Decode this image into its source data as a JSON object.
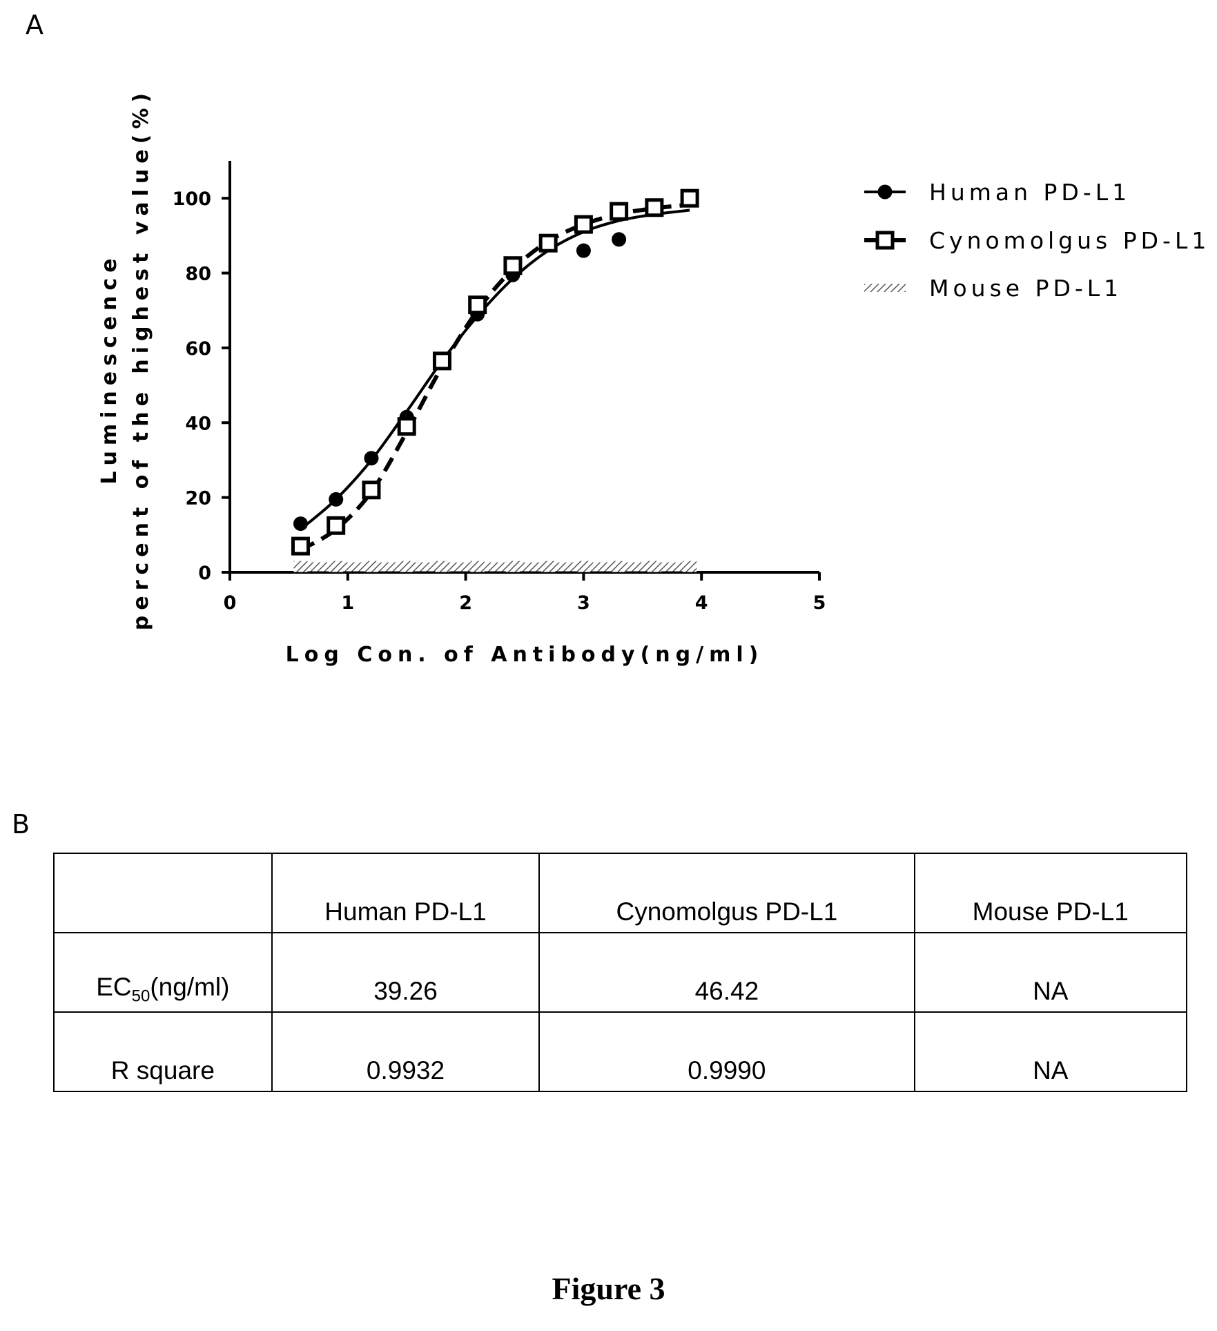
{
  "panel_a_label": "A",
  "panel_b_label": "B",
  "figure_caption": "Figure 3",
  "chart_data": {
    "type": "scatter",
    "xlabel": "Log Con. of Antibody(ng/ml)",
    "ylabel_line1": "Luminescence",
    "ylabel_line2": "percent of the highest value(%)",
    "xlim": [
      0,
      5
    ],
    "ylim": [
      0,
      110
    ],
    "xticks": [
      0,
      1,
      2,
      3,
      4,
      5
    ],
    "yticks": [
      0,
      20,
      40,
      60,
      80,
      100
    ],
    "grid": false,
    "legend_position": "right",
    "series": [
      {
        "name": "Human PD-L1",
        "marker": "filled-circle",
        "line_style": "solid",
        "color": "#000000",
        "x": [
          0.6,
          0.9,
          1.2,
          1.5,
          1.8,
          2.1,
          2.4,
          2.7,
          3.0,
          3.3,
          3.6,
          3.9
        ],
        "y": [
          13,
          19.5,
          30.5,
          41.5,
          56.5,
          69,
          79.5,
          88,
          86,
          89,
          97.5,
          100
        ],
        "fit_x": [
          0.6,
          0.9,
          1.2,
          1.5,
          1.8,
          2.1,
          2.4,
          2.7,
          3.0,
          3.3,
          3.6,
          3.9
        ],
        "fit_y": [
          11.5,
          19.5,
          30,
          43,
          56.5,
          68.5,
          78.5,
          86,
          91,
          94,
          95.7,
          96.8
        ]
      },
      {
        "name": "Cynomolgus PD-L1",
        "marker": "open-square",
        "line_style": "dashed",
        "color": "#000000",
        "x": [
          0.6,
          0.9,
          1.2,
          1.5,
          1.8,
          2.1,
          2.4,
          2.7,
          3.0,
          3.3,
          3.6,
          3.9
        ],
        "y": [
          7,
          12.5,
          22,
          39,
          56.5,
          71.5,
          82,
          88,
          93,
          96.5,
          97.5,
          100
        ],
        "fit_x": [
          0.6,
          0.9,
          1.2,
          1.5,
          1.8,
          2.1,
          2.4,
          2.7,
          3.0,
          3.3,
          3.6,
          3.9
        ],
        "fit_y": [
          6,
          11.5,
          21.5,
          37.5,
          55,
          70,
          81,
          88.5,
          93,
          95.8,
          97.3,
          98.3
        ]
      },
      {
        "name": "Mouse PD-L1",
        "marker": "hatched-band",
        "line_style": "none",
        "color": "#777777",
        "x": [
          0.6,
          0.9,
          1.2,
          1.5,
          1.8,
          2.1,
          2.4,
          2.7,
          3.0,
          3.3,
          3.6,
          3.9
        ],
        "y": [
          1,
          1,
          1,
          1,
          1,
          1,
          1,
          1,
          1,
          1,
          1,
          1
        ]
      }
    ]
  },
  "table": {
    "header": [
      "",
      "Human PD-L1",
      "Cynomolgus PD-L1",
      "Mouse PD-L1"
    ],
    "rows": [
      {
        "label_main": "EC",
        "label_sub": "50",
        "label_suffix": "(ng/ml)",
        "values": [
          "39.26",
          "46.42",
          "NA"
        ]
      },
      {
        "label_main": "R square",
        "values": [
          "0.9932",
          "0.9990",
          "NA"
        ]
      }
    ]
  }
}
